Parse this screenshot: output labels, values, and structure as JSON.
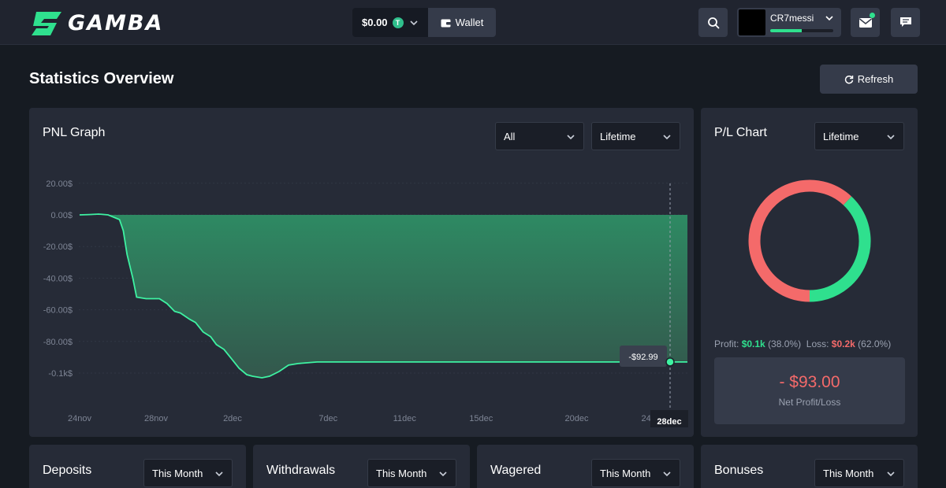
{
  "header": {
    "logo_text": "GAMBA",
    "balance": "$0.00",
    "coin_symbol": "T",
    "wallet_label": "Wallet",
    "username": "CR7messi",
    "level_progress": 0.5
  },
  "page": {
    "title": "Statistics Overview",
    "refresh_label": "Refresh"
  },
  "pnl": {
    "title": "PNL Graph",
    "filter": "All",
    "range": "Lifetime",
    "tooltip": "-$92.99",
    "active_date": "28dec"
  },
  "pl": {
    "title": "P/L Chart",
    "range": "Lifetime",
    "profit_label": "Profit:",
    "profit_value": "$0.1k",
    "profit_pct": "(38.0%)",
    "loss_label": "Loss:",
    "loss_value": "$0.2k",
    "loss_pct": "(62.0%)",
    "net_value": "- $93.00",
    "net_label": "Net Profit/Loss"
  },
  "cards": [
    {
      "title": "Deposits",
      "range": "This Month"
    },
    {
      "title": "Withdrawals",
      "range": "This Month"
    },
    {
      "title": "Wagered",
      "range": "This Month"
    },
    {
      "title": "Bonuses",
      "range": "This Month"
    }
  ],
  "colors": {
    "accent_green": "#2fe08e",
    "loss_red": "#f46a6a",
    "area_green": "#2e8a63"
  },
  "chart_data": [
    {
      "type": "area",
      "title": "PNL Graph",
      "y_ticks": [
        "20.00$",
        "0.00$",
        "-20.00$",
        "-40.00$",
        "-60.00$",
        "-80.00$",
        "-0.1k$"
      ],
      "y_tick_values": [
        20,
        0,
        -20,
        -40,
        -60,
        -80,
        -100
      ],
      "ylim": [
        -100,
        20
      ],
      "x_ticks": [
        "24nov",
        "28nov",
        "2dec",
        "7dec",
        "11dec",
        "15dec",
        "20dec",
        "24dec",
        "28dec"
      ],
      "x_tick_days": [
        0,
        4,
        8,
        13,
        17,
        21,
        26,
        30,
        34
      ],
      "series": [
        {
          "x": [
            0,
            0.5,
            1,
            1.5,
            1.9,
            2.1,
            2.3,
            2.5,
            2.8,
            3.0,
            3.5,
            3.9,
            4.2,
            4.6,
            5.0,
            5.3,
            5.8,
            6.1,
            6.5,
            6.9,
            7.2,
            7.6,
            8.0,
            8.4,
            8.8,
            9.1,
            9.6,
            10.0,
            10.5,
            11.0,
            11.5,
            12.5,
            20,
            28,
            30,
            31.5,
            32
          ],
          "y": [
            0,
            0.2,
            0.5,
            0,
            -2,
            -3,
            -10,
            -25,
            -40,
            -52,
            -53,
            -53,
            -53,
            -56,
            -61,
            -62,
            -66,
            -68,
            -74,
            -77,
            -82,
            -85,
            -91,
            -97,
            -101,
            -102,
            -103,
            -102,
            -99,
            -95,
            -94,
            -93,
            -93,
            -93,
            -93,
            -93,
            -93
          ]
        }
      ]
    },
    {
      "type": "pie",
      "title": "P/L Chart",
      "labels": [
        "Profit",
        "Loss"
      ],
      "values": [
        38.0,
        62.0
      ]
    }
  ]
}
